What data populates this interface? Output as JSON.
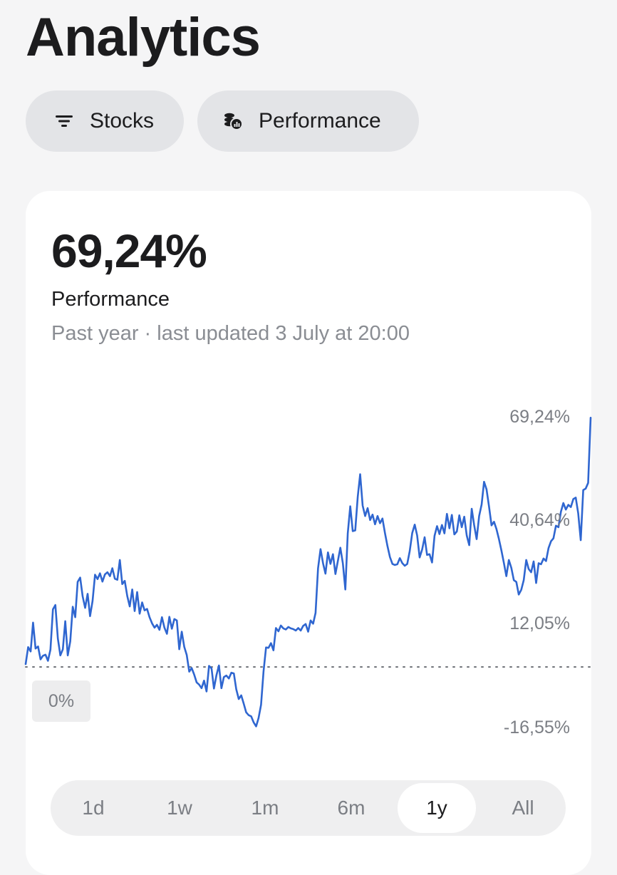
{
  "page": {
    "title": "Analytics"
  },
  "filters": [
    {
      "label": "Stocks",
      "icon": "filter-lines-icon"
    },
    {
      "label": "Performance",
      "icon": "coins-chart-icon"
    }
  ],
  "summary": {
    "value": "69,24%",
    "label": "Performance",
    "subtitle": "Past year · last updated 3 July at 20:00"
  },
  "colors": {
    "line": "#2f66d0",
    "baseline": "#6f7278",
    "background": "#f5f5f6"
  },
  "chart_data": {
    "type": "line",
    "xlabel": "",
    "ylabel": "",
    "y_unit": "%",
    "ylim": [
      -19,
      74
    ],
    "grid": false,
    "baseline": 0,
    "baseline_label": "0%",
    "ytick_labels": [
      "69,24%",
      "40,64%",
      "12,05%",
      "-16,55%"
    ],
    "ytick_values": [
      69.24,
      40.64,
      12.05,
      -16.55
    ],
    "series": [
      {
        "values": [
          0.8,
          5.5,
          4.3,
          12.3,
          5.1,
          5.7,
          2.1,
          3.1,
          3.4,
          1.7,
          4.8,
          16.0,
          17.2,
          7.9,
          3.2,
          4.9,
          12.7,
          3.2,
          7.1,
          16.7,
          13.8,
          23.6,
          24.8,
          19.6,
          16.4,
          20.3,
          14.1,
          18.3,
          25.6,
          24.4,
          26.0,
          23.7,
          25.7,
          26.3,
          25.2,
          27.4,
          24.5,
          24.2,
          29.7,
          23.0,
          23.9,
          19.7,
          16.8,
          21.5,
          15.5,
          20.8,
          14.8,
          17.9,
          15.7,
          16.1,
          13.8,
          12.1,
          10.9,
          11.7,
          10.3,
          13.8,
          10.9,
          9.2,
          13.9,
          10.6,
          13.3,
          12.9,
          4.9,
          9.8,
          5.6,
          3.3,
          -1.3,
          -0.3,
          -2.1,
          -4.3,
          -4.9,
          -5.9,
          -3.8,
          -6.8,
          0.3,
          -0.4,
          -6.0,
          -2.3,
          0.4,
          -5.9,
          -2.8,
          -2.4,
          -3.2,
          -1.6,
          -1.8,
          -6.2,
          -8.9,
          -7.9,
          -10.2,
          -12.6,
          -13.4,
          -13.7,
          -15.4,
          -16.5,
          -14.2,
          -10.5,
          -1.2,
          5.4,
          5.3,
          6.6,
          4.6,
          10.8,
          9.9,
          11.5,
          10.7,
          10.4,
          11.1,
          10.7,
          10.5,
          10.1,
          10.8,
          10.1,
          11.4,
          11.9,
          9.8,
          12.9,
          12.0,
          15.0,
          27.4,
          32.7,
          28.8,
          25.9,
          31.8,
          28.6,
          31.3,
          25.8,
          29.4,
          33.1,
          28.8,
          21.5,
          37.1,
          44.6,
          37.7,
          37.9,
          47.2,
          53.5,
          44.8,
          41.9,
          44.1,
          40.8,
          42.3,
          39.6,
          41.9,
          39.9,
          41.2,
          37.2,
          33.6,
          30.5,
          28.6,
          28.3,
          28.5,
          30.2,
          28.8,
          28.1,
          28.6,
          32.2,
          37.2,
          39.5,
          36.5,
          30.4,
          32.6,
          36.0,
          31.1,
          31.3,
          29.0,
          36.4,
          39.1,
          36.9,
          39.4,
          37.1,
          42.5,
          38.5,
          42.2,
          36.8,
          37.6,
          42.1,
          38.8,
          41.7,
          36.5,
          33.8,
          43.9,
          39.4,
          35.5,
          41.9,
          45.1,
          51.4,
          49.3,
          44.5,
          39.3,
          40.3,
          38.3,
          35.5,
          32.3,
          28.8,
          25.2,
          29.7,
          27.5,
          24.1,
          23.6,
          20.1,
          21.4,
          24.1,
          29.7,
          27.2,
          26.3,
          29.3,
          23.3,
          28.8,
          28.5,
          30.1,
          29.4,
          33.0,
          34.9,
          35.7,
          39.2,
          38.8,
          43.1,
          45.5,
          43.7,
          45.0,
          44.4,
          46.6,
          47.0,
          42.6,
          35.2,
          49.1,
          49.5,
          51.1,
          69.2
        ]
      }
    ]
  },
  "range_selector": {
    "active_index": 4,
    "options": [
      "1d",
      "1w",
      "1m",
      "6m",
      "1y",
      "All"
    ]
  }
}
